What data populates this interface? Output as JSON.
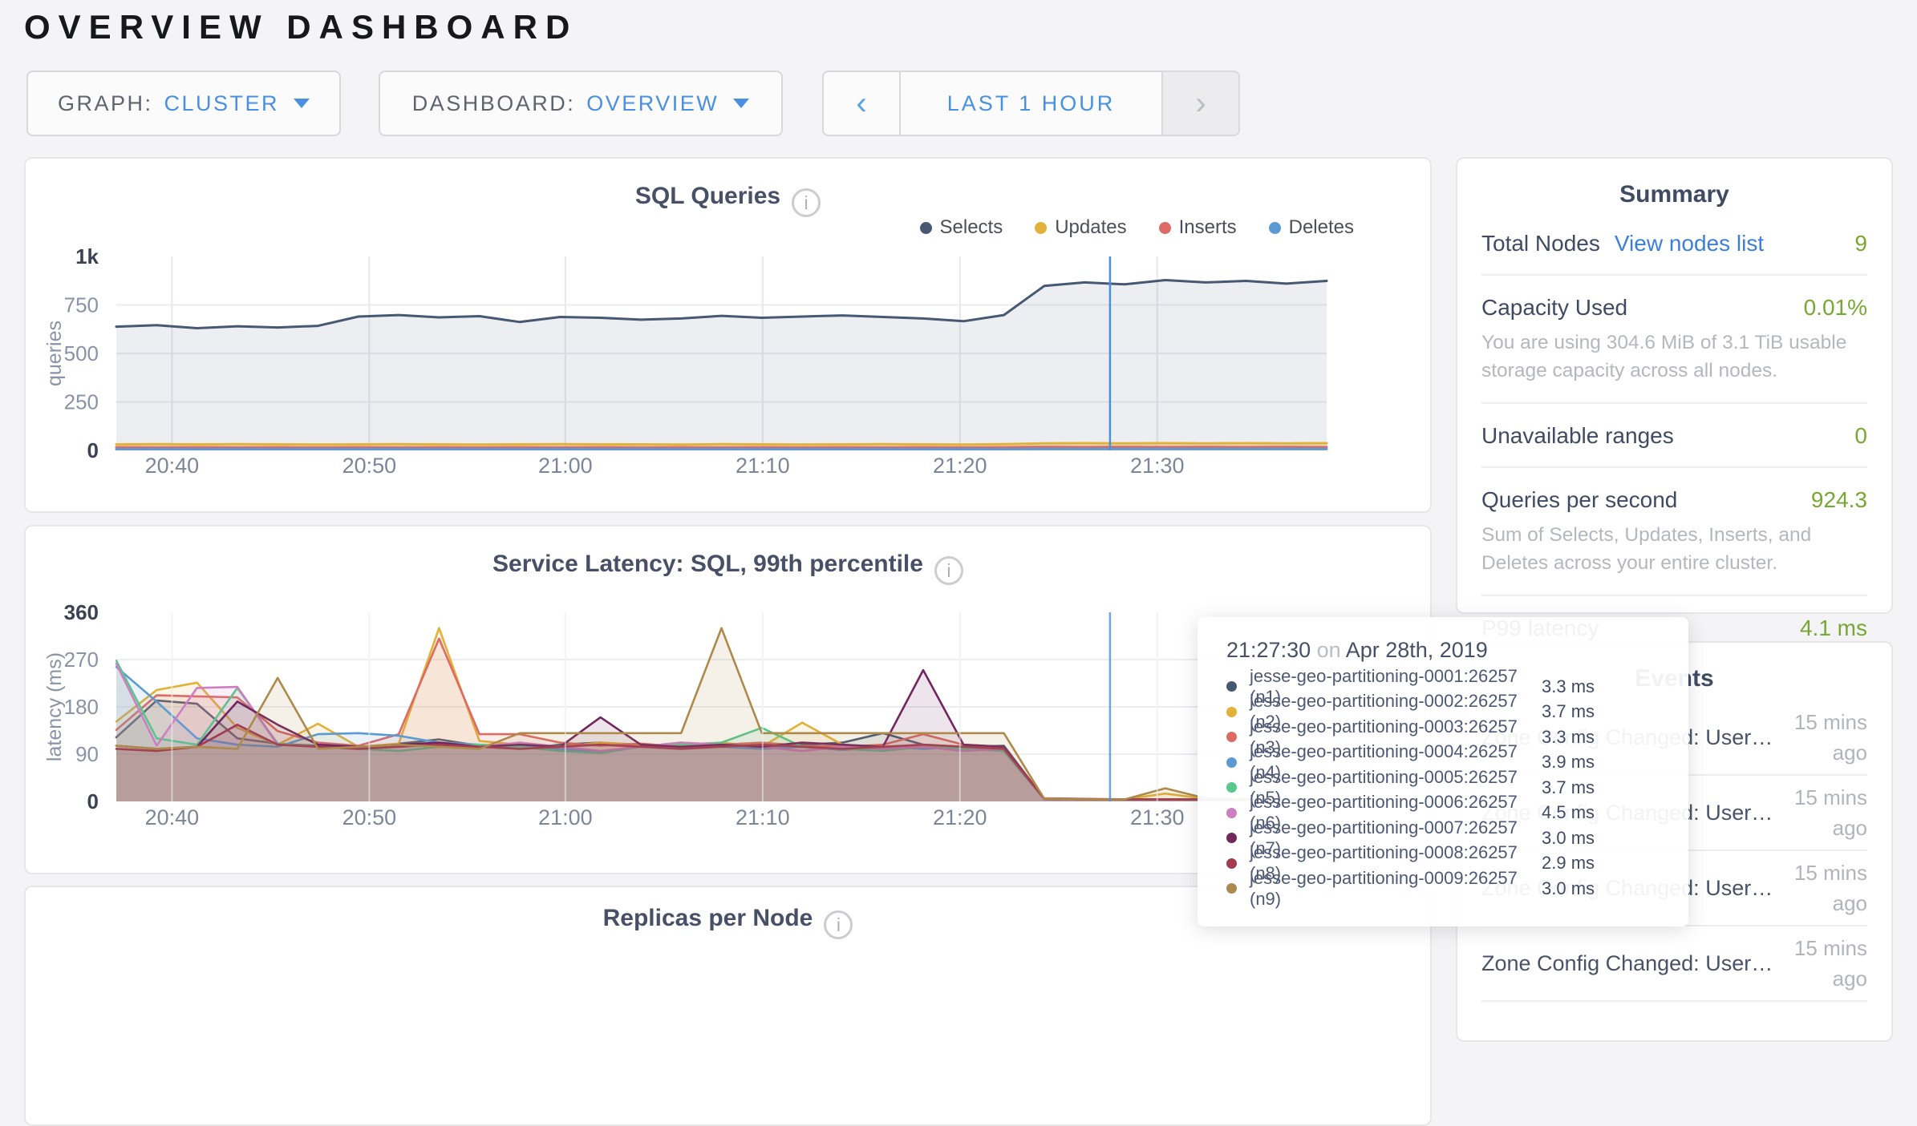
{
  "header": {
    "title": "OVERVIEW DASHBOARD"
  },
  "controls": {
    "graph": {
      "label": "GRAPH:",
      "value": "CLUSTER"
    },
    "dashboard": {
      "label": "DASHBOARD:",
      "value": "OVERVIEW"
    },
    "time_range": {
      "prev": "‹",
      "label": "LAST 1 HOUR",
      "next": "›"
    }
  },
  "colors": {
    "accent_blue": "#4a90e2",
    "link_blue": "#3e7edb",
    "value_green": "#76a832",
    "crosshair": "#4a90e2"
  },
  "chart_data": [
    {
      "type": "area",
      "title": "SQL Queries",
      "ylabel": "queries",
      "xlabel": "",
      "x_range": [
        "20:37",
        "21:37"
      ],
      "ylim": [
        0,
        1000
      ],
      "grid": true,
      "legend_position": "top-right",
      "x_ticks": {
        "labels": [
          "20:40",
          "20:50",
          "21:00",
          "21:10",
          "21:20",
          "21:30"
        ],
        "fracs": [
          0.046,
          0.209,
          0.371,
          0.534,
          0.697,
          0.86
        ]
      },
      "y_ticks": {
        "values": [
          0,
          250,
          500,
          750,
          1000
        ],
        "labels": [
          "0",
          "250",
          "500",
          "750",
          "1k"
        ]
      },
      "crosshair": {
        "frac": 0.821,
        "time": "21:27:30"
      },
      "series": [
        {
          "name": "Selects",
          "color": "#475872",
          "fill_opacity": 0.1,
          "values": [
            638,
            646,
            630,
            640,
            634,
            642,
            690,
            698,
            686,
            692,
            662,
            688,
            684,
            674,
            680,
            694,
            684,
            690,
            696,
            688,
            680,
            666,
            698,
            848,
            866,
            856,
            878,
            866,
            874,
            860,
            874
          ]
        },
        {
          "name": "Updates",
          "color": "#e2b138",
          "fill_opacity": 0.25,
          "values": [
            31,
            32,
            31,
            32,
            31,
            30,
            31,
            32,
            31,
            30,
            31,
            32,
            31,
            31,
            30,
            32,
            31,
            30,
            31,
            32,
            31,
            30,
            32,
            36,
            37,
            36,
            37,
            36,
            37,
            36,
            37
          ]
        },
        {
          "name": "Inserts",
          "color": "#dd6a65",
          "fill_opacity": 0.25,
          "values": [
            16,
            15,
            16,
            15,
            16,
            15,
            16,
            15,
            16,
            15,
            16,
            15,
            16,
            15,
            16,
            15,
            16,
            15,
            16,
            15,
            16,
            15,
            16,
            18,
            17,
            18,
            17,
            18,
            17,
            18,
            17
          ]
        },
        {
          "name": "Deletes",
          "color": "#5b9bd1",
          "fill_opacity": 0.25,
          "values": [
            6,
            6,
            6,
            6,
            6,
            6,
            6,
            6,
            6,
            6,
            6,
            6,
            6,
            6,
            6,
            6,
            6,
            6,
            6,
            6,
            6,
            6,
            6,
            7,
            7,
            7,
            7,
            7,
            7,
            7,
            7
          ]
        }
      ]
    },
    {
      "type": "area",
      "title": "Service Latency: SQL, 99th percentile",
      "ylabel": "latency (ms)",
      "xlabel": "",
      "x_range": [
        "20:37",
        "21:37"
      ],
      "ylim": [
        0,
        360
      ],
      "grid": true,
      "legend_position": "none",
      "x_ticks": {
        "labels": [
          "20:40",
          "20:50",
          "21:00",
          "21:10",
          "21:20",
          "21:30"
        ],
        "fracs": [
          0.046,
          0.209,
          0.371,
          0.534,
          0.697,
          0.86
        ]
      },
      "y_ticks": {
        "values": [
          0,
          90,
          180,
          270,
          360
        ],
        "labels": [
          "0",
          "90",
          "180",
          "270",
          "360"
        ]
      },
      "crosshair": {
        "frac": 0.821,
        "time": "21:27:30"
      },
      "series": [
        {
          "name": "jesse-geo-partitioning-0001:26257 (n1)",
          "color": "#475872",
          "fill_opacity": 0.12,
          "values": [
            122,
            192,
            186,
            120,
            110,
            106,
            100,
            110,
            118,
            106,
            100,
            108,
            112,
            104,
            108,
            110,
            104,
            108,
            112,
            130,
            108,
            104,
            106,
            5,
            4,
            4,
            4,
            4,
            4,
            3,
            3
          ]
        },
        {
          "name": "jesse-geo-partitioning-0002:26257 (n2)",
          "color": "#e2b138",
          "fill_opacity": 0.12,
          "values": [
            152,
            212,
            226,
            140,
            108,
            148,
            104,
            110,
            330,
            115,
            108,
            104,
            112,
            108,
            104,
            112,
            104,
            150,
            108,
            104,
            106,
            102,
            104,
            5,
            4,
            4,
            15,
            5,
            4,
            4,
            4
          ]
        },
        {
          "name": "jesse-geo-partitioning-0003:26257 (n3)",
          "color": "#dd6a65",
          "fill_opacity": 0.12,
          "values": [
            136,
            202,
            200,
            198,
            134,
            112,
            106,
            128,
            310,
            128,
            128,
            112,
            106,
            110,
            104,
            108,
            112,
            106,
            104,
            108,
            128,
            108,
            104,
            6,
            5,
            4,
            4,
            4,
            4,
            4,
            4
          ]
        },
        {
          "name": "jesse-geo-partitioning-0004:26257 (n4)",
          "color": "#5b9bd1",
          "fill_opacity": 0.12,
          "values": [
            256,
            190,
            120,
            108,
            104,
            128,
            130,
            125,
            112,
            108,
            104,
            100,
            95,
            104,
            112,
            104,
            100,
            104,
            98,
            104,
            100,
            104,
            96,
            5,
            4,
            4,
            4,
            4,
            4,
            4,
            4
          ]
        },
        {
          "name": "jesse-geo-partitioning-0005:26257 (n5)",
          "color": "#57c88b",
          "fill_opacity": 0.12,
          "values": [
            268,
            120,
            108,
            216,
            110,
            104,
            100,
            96,
            104,
            108,
            104,
            96,
            92,
            104,
            108,
            112,
            140,
            104,
            100,
            96,
            104,
            100,
            96,
            4,
            4,
            4,
            4,
            4,
            4,
            4,
            4
          ]
        },
        {
          "name": "jesse-geo-partitioning-0006:26257 (n6)",
          "color": "#cd7fc2",
          "fill_opacity": 0.12,
          "values": [
            262,
            106,
            216,
            218,
            108,
            104,
            100,
            104,
            108,
            104,
            112,
            104,
            96,
            104,
            112,
            108,
            104,
            96,
            104,
            100,
            104,
            96,
            100,
            4,
            4,
            4,
            4,
            4,
            4,
            4,
            4
          ]
        },
        {
          "name": "jesse-geo-partitioning-0007:26257 (n7)",
          "color": "#72265f",
          "fill_opacity": 0.12,
          "values": [
            106,
            100,
            104,
            190,
            146,
            108,
            104,
            108,
            112,
            104,
            108,
            104,
            160,
            108,
            104,
            108,
            104,
            112,
            108,
            104,
            250,
            108,
            104,
            5,
            4,
            4,
            4,
            4,
            4,
            4,
            4
          ]
        },
        {
          "name": "jesse-geo-partitioning-0008:26257 (n8)",
          "color": "#a23a52",
          "fill_opacity": 0.12,
          "values": [
            100,
            96,
            104,
            146,
            108,
            104,
            100,
            104,
            108,
            104,
            100,
            104,
            108,
            104,
            100,
            104,
            108,
            104,
            100,
            104,
            108,
            104,
            100,
            5,
            4,
            4,
            4,
            4,
            4,
            4,
            4
          ]
        },
        {
          "name": "jesse-geo-partitioning-0009:26257 (n9)",
          "color": "#ad8a4b",
          "fill_opacity": 0.12,
          "values": [
            106,
            100,
            104,
            100,
            235,
            100,
            104,
            108,
            104,
            100,
            130,
            130,
            130,
            130,
            130,
            330,
            130,
            130,
            130,
            130,
            130,
            130,
            130,
            5,
            4,
            4,
            25,
            6,
            4,
            4,
            4
          ]
        }
      ]
    },
    {
      "type": "area",
      "title": "Replicas per Node"
    }
  ],
  "summary": {
    "title": "Summary",
    "rows": [
      {
        "label": "Total Nodes",
        "link": "View nodes list",
        "value": "9"
      },
      {
        "label": "Capacity Used",
        "value": "0.01%",
        "sub": "You are using 304.6 MiB of 3.1 TiB usable storage capacity across all nodes."
      },
      {
        "label": "Unavailable ranges",
        "value": "0"
      },
      {
        "label": "Queries per second",
        "value": "924.3",
        "sub": "Sum of Selects, Updates, Inserts, and Deletes across your entire cluster."
      },
      {
        "label": "P99 latency",
        "value": "4.1 ms"
      }
    ]
  },
  "events": {
    "title": "Events",
    "items": [
      {
        "text": "Zone Config Changed: User…",
        "time": "15 mins ago"
      },
      {
        "text": "Zone Config Changed: User…",
        "time": "15 mins ago"
      },
      {
        "text": "Zone Config Changed: User…",
        "time": "15 mins ago"
      },
      {
        "text": "Zone Config Changed: User…",
        "time": "15 mins ago"
      }
    ]
  },
  "tooltip": {
    "time": "21:27:30",
    "on_word": "on",
    "date": "Apr 28th, 2019",
    "rows": [
      {
        "name": "jesse-geo-partitioning-0001:26257 (n1)",
        "value": "3.3 ms",
        "color": "#475872"
      },
      {
        "name": "jesse-geo-partitioning-0002:26257 (n2)",
        "value": "3.7 ms",
        "color": "#e2b138"
      },
      {
        "name": "jesse-geo-partitioning-0003:26257 (n3)",
        "value": "3.3 ms",
        "color": "#dd6a65"
      },
      {
        "name": "jesse-geo-partitioning-0004:26257 (n4)",
        "value": "3.9 ms",
        "color": "#5b9bd1"
      },
      {
        "name": "jesse-geo-partitioning-0005:26257 (n5)",
        "value": "3.7 ms",
        "color": "#57c88b"
      },
      {
        "name": "jesse-geo-partitioning-0006:26257 (n6)",
        "value": "4.5 ms",
        "color": "#cd7fc2"
      },
      {
        "name": "jesse-geo-partitioning-0007:26257 (n7)",
        "value": "3.0 ms",
        "color": "#72265f"
      },
      {
        "name": "jesse-geo-partitioning-0008:26257 (n8)",
        "value": "2.9 ms",
        "color": "#a23a52"
      },
      {
        "name": "jesse-geo-partitioning-0009:26257 (n9)",
        "value": "3.0 ms",
        "color": "#ad8a4b"
      }
    ]
  }
}
